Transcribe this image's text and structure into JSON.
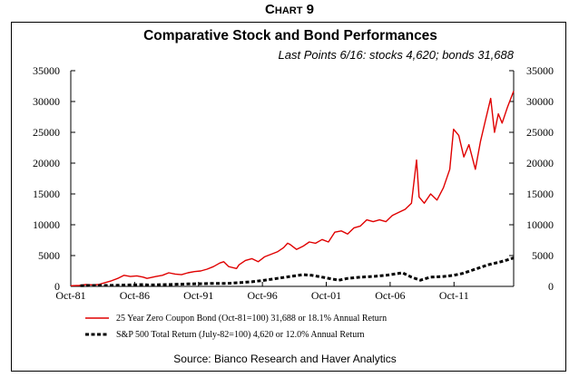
{
  "chart_label": "Chart 9",
  "chart_data": {
    "type": "line",
    "title": "Comparative Stock and Bond Performances",
    "subtitle": "Last Points 6/16:  stocks  4,620;  bonds  31,688",
    "source": "Source: Bianco Research and Haver Analytics",
    "ylim": [
      0,
      35000
    ],
    "y_ticks": [
      0,
      5000,
      10000,
      15000,
      20000,
      25000,
      30000,
      35000
    ],
    "y_tick_labels": [
      "0",
      "5000",
      "10000",
      "15000",
      "20000",
      "25000",
      "30000",
      "35000"
    ],
    "x_range": [
      1981.83,
      2016.5
    ],
    "x_ticks": [
      1981.83,
      1986.83,
      1991.83,
      1996.83,
      2001.83,
      2006.83,
      2011.83
    ],
    "x_tick_labels": [
      "Oct-81",
      "Oct-86",
      "Oct-91",
      "Oct-96",
      "Oct-01",
      "Oct-06",
      "Oct-11"
    ],
    "grid": false,
    "legend_position": "bottom",
    "series": [
      {
        "name": "25 Year Zero Coupon Bond (Oct-81=100) 31,688 or 18.1% Annual Return",
        "color": "#e00000",
        "style": "solid",
        "x": [
          1981.83,
          1982.5,
          1983.0,
          1983.5,
          1984.0,
          1984.5,
          1985.0,
          1985.5,
          1986.0,
          1986.5,
          1987.0,
          1987.5,
          1987.8,
          1988.5,
          1989.0,
          1989.5,
          1990.0,
          1990.5,
          1991.0,
          1991.5,
          1992.0,
          1992.5,
          1993.0,
          1993.5,
          1993.8,
          1994.2,
          1994.8,
          1995.0,
          1995.5,
          1996.0,
          1996.5,
          1997.0,
          1997.5,
          1998.0,
          1998.5,
          1998.8,
          1999.0,
          1999.5,
          2000.0,
          2000.5,
          2001.0,
          2001.5,
          2002.0,
          2002.5,
          2003.0,
          2003.5,
          2004.0,
          2004.5,
          2005.0,
          2005.5,
          2006.0,
          2006.5,
          2007.0,
          2007.5,
          2008.0,
          2008.5,
          2008.9,
          2009.1,
          2009.5,
          2010.0,
          2010.5,
          2011.0,
          2011.5,
          2011.8,
          2012.2,
          2012.6,
          2013.0,
          2013.5,
          2013.9,
          2014.3,
          2014.7,
          2015.0,
          2015.3,
          2015.6,
          2016.0,
          2016.5
        ],
        "y": [
          100,
          150,
          300,
          250,
          300,
          600,
          900,
          1300,
          1800,
          1600,
          1700,
          1500,
          1300,
          1600,
          1800,
          2200,
          2000,
          1900,
          2200,
          2400,
          2500,
          2800,
          3200,
          3800,
          4000,
          3200,
          2900,
          3500,
          4200,
          4500,
          4000,
          4800,
          5200,
          5600,
          6300,
          7000,
          6800,
          6000,
          6500,
          7200,
          7000,
          7600,
          7200,
          8800,
          9000,
          8500,
          9500,
          9800,
          10800,
          10500,
          10800,
          10500,
          11500,
          12000,
          12500,
          13500,
          20500,
          14500,
          13500,
          15000,
          14000,
          16000,
          19000,
          25500,
          24500,
          21000,
          23000,
          19000,
          23500,
          27000,
          30500,
          25000,
          28000,
          26500,
          29000,
          31688
        ]
      },
      {
        "name": "S&P 500 Total Return (July-82=100) 4,620 or 12.0% Annual Return",
        "color": "#000000",
        "style": "dashed",
        "x": [
          1982.58,
          1983.5,
          1984.5,
          1985.5,
          1986.5,
          1987.6,
          1987.9,
          1989.0,
          1990.0,
          1991.0,
          1992.0,
          1993.0,
          1994.0,
          1995.0,
          1996.0,
          1997.0,
          1998.0,
          1999.0,
          2000.0,
          2000.7,
          2001.5,
          2002.8,
          2003.5,
          2004.5,
          2005.5,
          2006.5,
          2007.8,
          2008.5,
          2009.2,
          2010.0,
          2011.0,
          2011.8,
          2012.5,
          2013.5,
          2014.5,
          2015.5,
          2016.0,
          2016.5
        ],
        "y": [
          100,
          140,
          150,
          180,
          230,
          300,
          220,
          280,
          320,
          400,
          430,
          480,
          470,
          600,
          750,
          1000,
          1300,
          1600,
          1900,
          1800,
          1500,
          1000,
          1300,
          1500,
          1600,
          1800,
          2200,
          1500,
          1000,
          1500,
          1600,
          1800,
          2100,
          2800,
          3500,
          4000,
          4300,
          4620
        ]
      }
    ]
  }
}
